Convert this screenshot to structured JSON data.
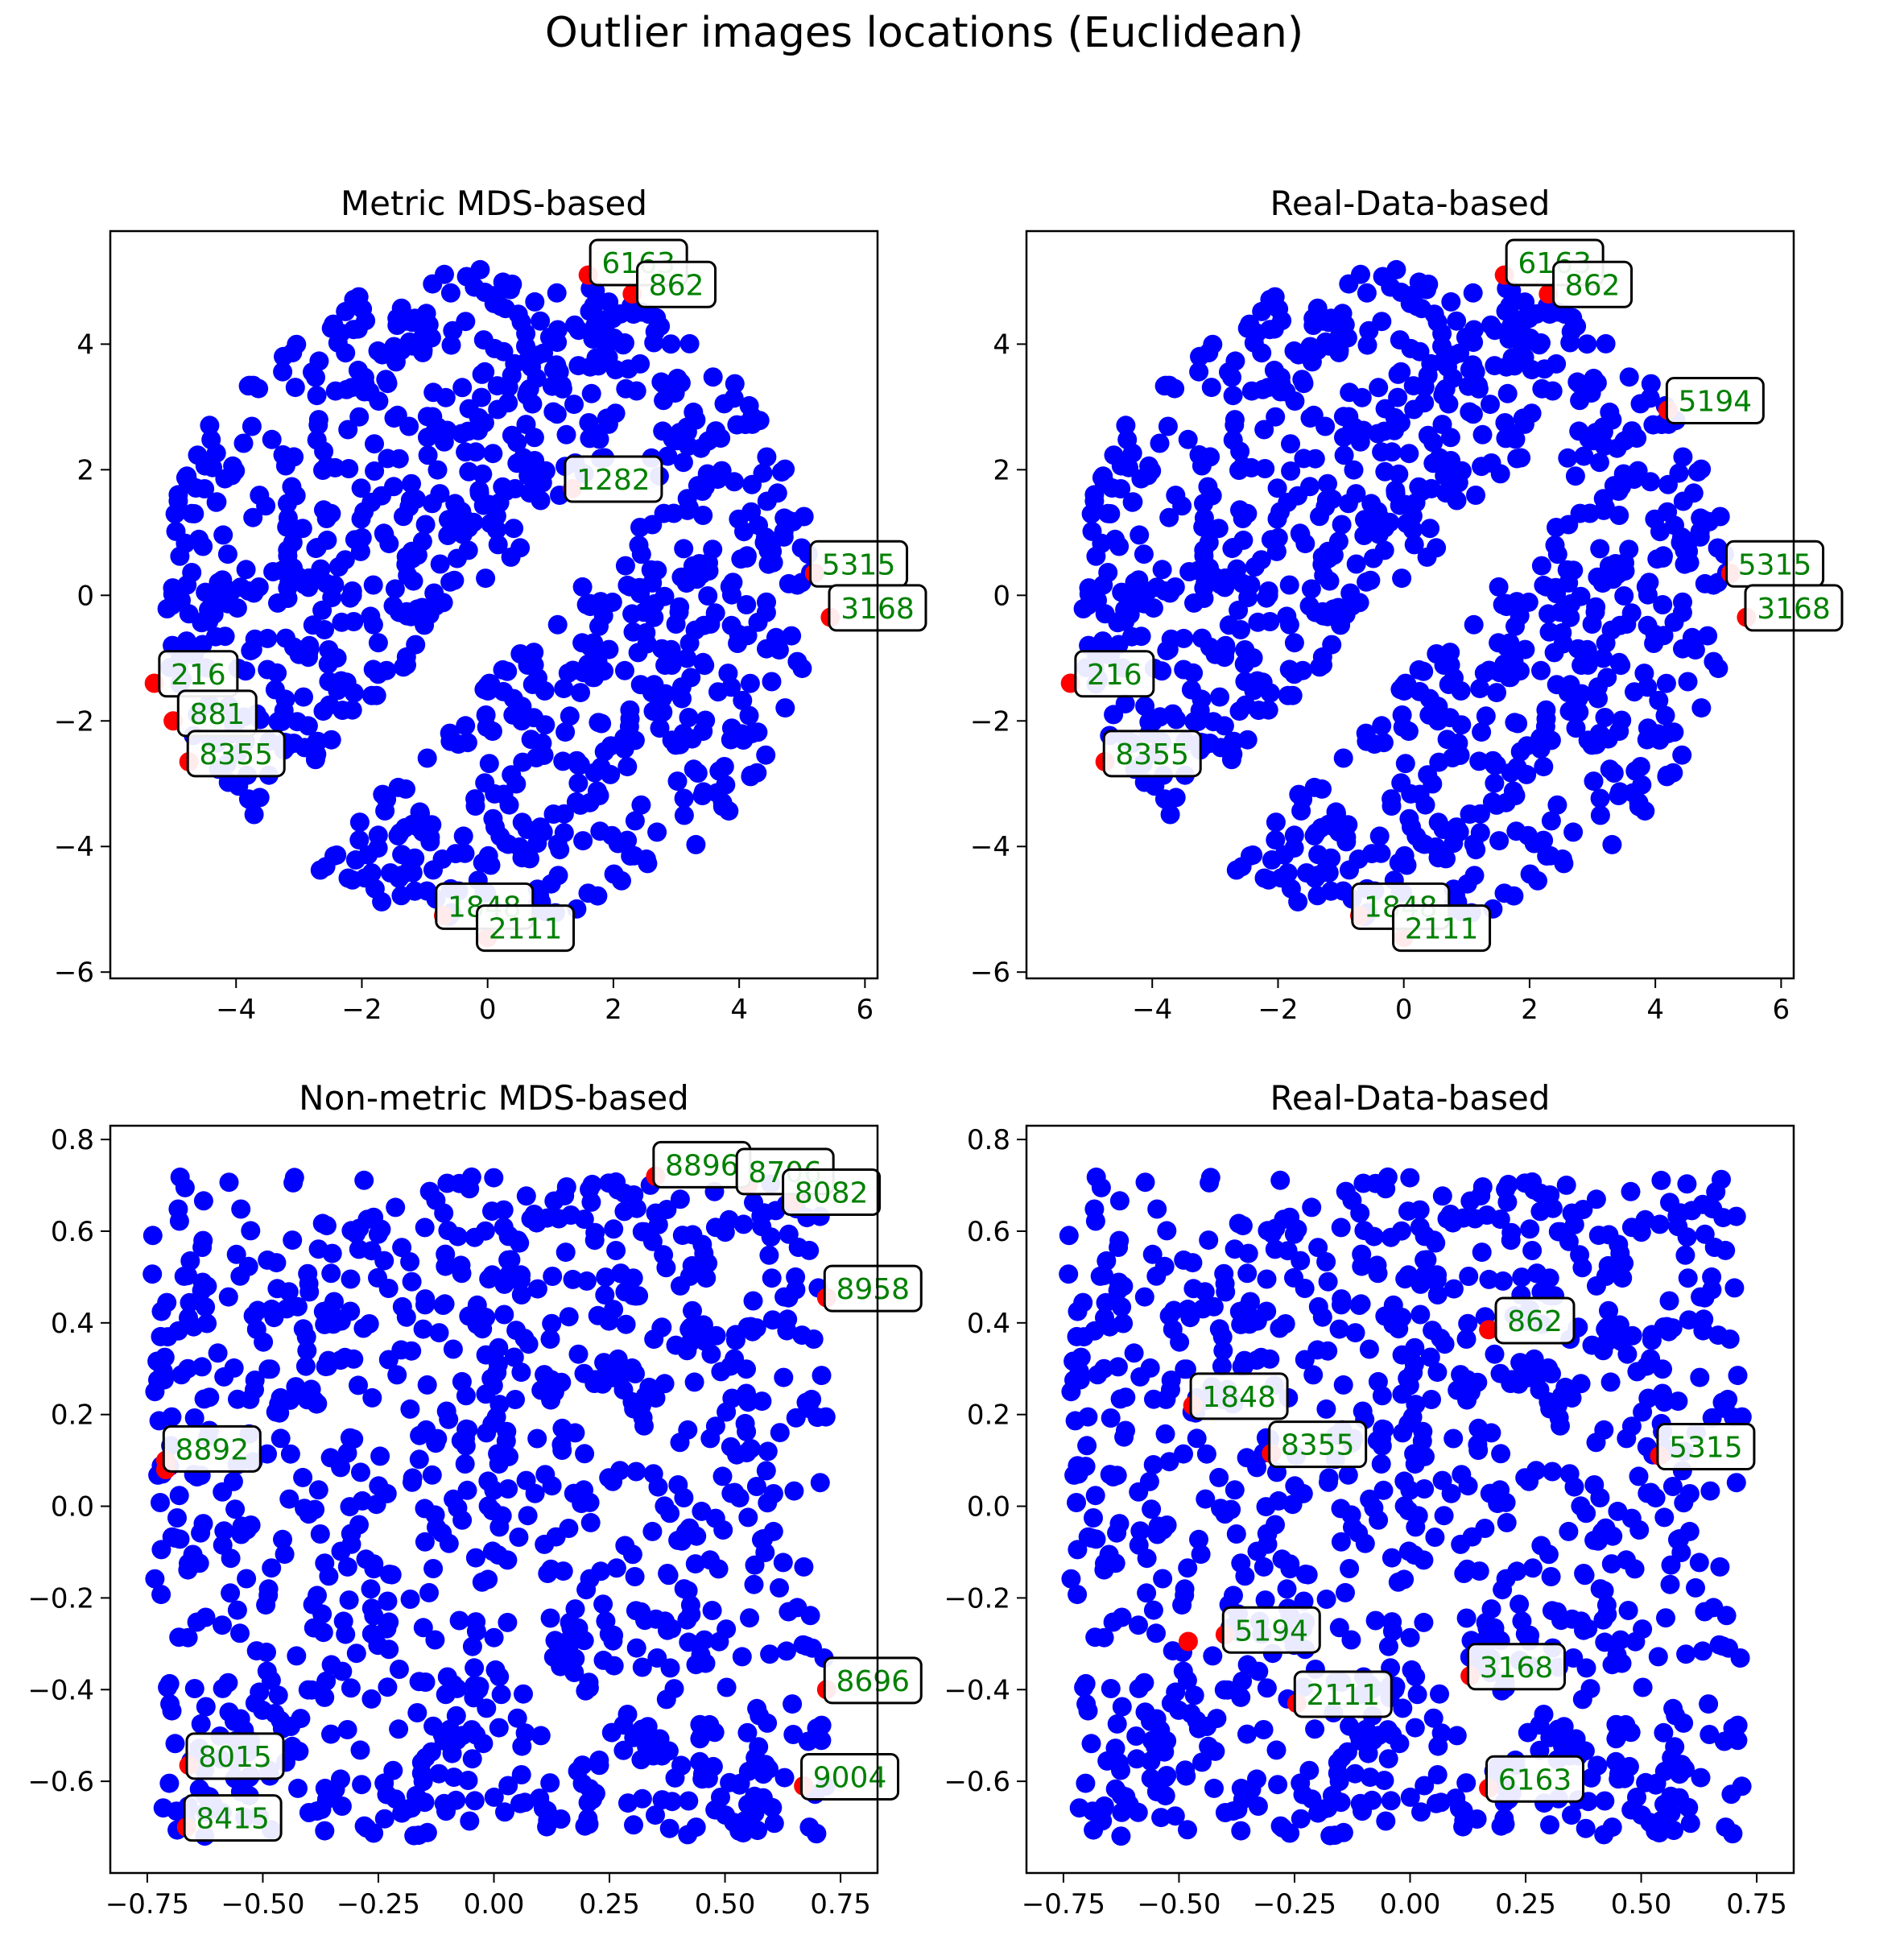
{
  "figure": {
    "suptitle": "Outlier images locations (Euclidean)"
  },
  "colors": {
    "inlier": "#0000ff",
    "outlier": "#ff0000",
    "label_text": "#008000"
  },
  "chart_data": [
    {
      "type": "scatter",
      "title": "Metric MDS-based",
      "xlim": [
        -6,
        6.2
      ],
      "ylim": [
        -6.1,
        5.8
      ],
      "xticks": [
        -4,
        -2,
        0,
        2,
        4,
        6
      ],
      "xtick_labels": [
        "−4",
        "−2",
        "0",
        "2",
        "4",
        "6"
      ],
      "yticks": [
        -6,
        -4,
        -2,
        0,
        2,
        4
      ],
      "ytick_labels": [
        "−6",
        "−4",
        "−2",
        "0",
        "2",
        "4"
      ],
      "inlier_shape": "disk-gap",
      "inlier_radius": 5.2,
      "inlier_gap": {
        "a": -0.9,
        "b": 0.55,
        "tilt": 0.3
      },
      "inlier_count": 900,
      "seed": 11,
      "outliers": [
        {
          "x": 1.6,
          "y": 5.1,
          "label": "6163",
          "lx": 2.4,
          "ly": 5.3
        },
        {
          "x": 2.3,
          "y": 4.8,
          "label": "862",
          "lx": 3.0,
          "ly": 4.95
        },
        {
          "x": 1.35,
          "y": 1.7,
          "label": "1282",
          "lx": 2.0,
          "ly": 1.85
        },
        {
          "x": 5.2,
          "y": 0.35,
          "label": "5315",
          "lx": 5.9,
          "ly": 0.5
        },
        {
          "x": 5.45,
          "y": -0.35,
          "label": "3168",
          "lx": 6.2,
          "ly": -0.2
        },
        {
          "x": -5.3,
          "y": -1.4,
          "label": "216",
          "lx": -4.6,
          "ly": -1.25
        },
        {
          "x": -5.0,
          "y": -2.0,
          "label": "881",
          "lx": -4.3,
          "ly": -1.88
        },
        {
          "x": -4.75,
          "y": -2.65,
          "label": "8355",
          "lx": -4.0,
          "ly": -2.52
        },
        {
          "x": -0.7,
          "y": -5.1,
          "label": "1848",
          "lx": -0.05,
          "ly": -4.95
        },
        {
          "x": 0.0,
          "y": -5.45,
          "label": "2111",
          "lx": 0.6,
          "ly": -5.3
        }
      ]
    },
    {
      "type": "scatter",
      "title": "Real-Data-based",
      "xlim": [
        -6,
        6.2
      ],
      "ylim": [
        -6.1,
        5.8
      ],
      "xticks": [
        -4,
        -2,
        0,
        2,
        4,
        6
      ],
      "xtick_labels": [
        "−4",
        "−2",
        "0",
        "2",
        "4",
        "6"
      ],
      "yticks": [
        -6,
        -4,
        -2,
        0,
        2,
        4
      ],
      "ytick_labels": [
        "−6",
        "−4",
        "−2",
        "0",
        "2",
        "4"
      ],
      "inlier_shape": "disk-gap",
      "inlier_radius": 5.2,
      "inlier_gap": {
        "a": -0.9,
        "b": 0.55,
        "tilt": 0.3
      },
      "inlier_count": 900,
      "seed": 11,
      "outliers": [
        {
          "x": 1.6,
          "y": 5.1,
          "label": "6163",
          "lx": 2.4,
          "ly": 5.3
        },
        {
          "x": 2.3,
          "y": 4.8,
          "label": "862",
          "lx": 3.0,
          "ly": 4.95
        },
        {
          "x": 4.2,
          "y": 2.95,
          "label": "5194",
          "lx": 4.95,
          "ly": 3.1
        },
        {
          "x": 5.2,
          "y": 0.35,
          "label": "5315",
          "lx": 5.9,
          "ly": 0.5
        },
        {
          "x": 5.45,
          "y": -0.35,
          "label": "3168",
          "lx": 6.2,
          "ly": -0.2
        },
        {
          "x": -5.3,
          "y": -1.4,
          "label": "216",
          "lx": -4.6,
          "ly": -1.25
        },
        {
          "x": -4.75,
          "y": -2.65,
          "label": "8355",
          "lx": -4.0,
          "ly": -2.52
        },
        {
          "x": -0.7,
          "y": -5.1,
          "label": "1848",
          "lx": -0.05,
          "ly": -4.95
        },
        {
          "x": 0.0,
          "y": -5.45,
          "label": "2111",
          "lx": 0.6,
          "ly": -5.3
        }
      ]
    },
    {
      "type": "scatter",
      "title": "Non-metric MDS-based",
      "xlim": [
        -0.83,
        0.83
      ],
      "ylim": [
        -0.8,
        0.83
      ],
      "xticks": [
        -0.75,
        -0.5,
        -0.25,
        0.0,
        0.25,
        0.5,
        0.75
      ],
      "xtick_labels": [
        "−0.75",
        "−0.50",
        "−0.25",
        "0.00",
        "0.25",
        "0.50",
        "0.75"
      ],
      "yticks": [
        -0.6,
        -0.4,
        -0.2,
        0.0,
        0.2,
        0.4,
        0.6,
        0.8
      ],
      "ytick_labels": [
        "−0.6",
        "−0.4",
        "−0.2",
        "0.0",
        "0.2",
        "0.4",
        "0.6",
        "0.8"
      ],
      "inlier_shape": "box",
      "inlier_xrange": [
        -0.74,
        0.72
      ],
      "inlier_yrange": [
        -0.72,
        0.72
      ],
      "inlier_count": 950,
      "seed": 23,
      "outliers": [
        {
          "x": 0.35,
          "y": 0.72,
          "label": "8896",
          "lx": 0.45,
          "ly": 0.745
        },
        {
          "x": 0.55,
          "y": 0.7,
          "label": "8706",
          "lx": 0.63,
          "ly": 0.73
        },
        {
          "x": 0.65,
          "y": 0.665,
          "label": "8082",
          "lx": 0.73,
          "ly": 0.685
        },
        {
          "x": 0.72,
          "y": 0.455,
          "label": "8958",
          "lx": 0.82,
          "ly": 0.475
        },
        {
          "x": -0.71,
          "y": 0.1,
          "label": "8892",
          "lx": -0.61,
          "ly": 0.125
        },
        {
          "x": -0.71,
          "y": 0.08,
          "label": "",
          "lx": 0,
          "ly": 0
        },
        {
          "x": 0.72,
          "y": -0.4,
          "label": "8696",
          "lx": 0.82,
          "ly": -0.38
        },
        {
          "x": -0.66,
          "y": -0.565,
          "label": "8015",
          "lx": -0.56,
          "ly": -0.545
        },
        {
          "x": 0.67,
          "y": -0.61,
          "label": "9004",
          "lx": 0.77,
          "ly": -0.59
        },
        {
          "x": -0.665,
          "y": -0.7,
          "label": "8415",
          "lx": -0.565,
          "ly": -0.68
        }
      ]
    },
    {
      "type": "scatter",
      "title": "Real-Data-based",
      "xlim": [
        -0.83,
        0.83
      ],
      "ylim": [
        -0.8,
        0.83
      ],
      "xticks": [
        -0.75,
        -0.5,
        -0.25,
        0.0,
        0.25,
        0.5,
        0.75
      ],
      "xtick_labels": [
        "−0.75",
        "−0.50",
        "−0.25",
        "0.00",
        "0.25",
        "0.50",
        "0.75"
      ],
      "yticks": [
        -0.6,
        -0.4,
        -0.2,
        0.0,
        0.2,
        0.4,
        0.6,
        0.8
      ],
      "ytick_labels": [
        "−0.6",
        "−0.4",
        "−0.2",
        "0.0",
        "0.2",
        "0.4",
        "0.6",
        "0.8"
      ],
      "inlier_shape": "box",
      "inlier_xrange": [
        -0.74,
        0.72
      ],
      "inlier_yrange": [
        -0.72,
        0.72
      ],
      "inlier_count": 950,
      "seed": 23,
      "outliers": [
        {
          "x": 0.17,
          "y": 0.385,
          "label": "862",
          "lx": 0.27,
          "ly": 0.405
        },
        {
          "x": -0.47,
          "y": 0.22,
          "label": "1848",
          "lx": -0.37,
          "ly": 0.24
        },
        {
          "x": -0.3,
          "y": 0.115,
          "label": "8355",
          "lx": -0.2,
          "ly": 0.135
        },
        {
          "x": 0.54,
          "y": 0.11,
          "label": "5315",
          "lx": 0.64,
          "ly": 0.13
        },
        {
          "x": -0.48,
          "y": -0.295,
          "label": "",
          "lx": 0,
          "ly": 0
        },
        {
          "x": -0.4,
          "y": -0.28,
          "label": "5194",
          "lx": -0.3,
          "ly": -0.27
        },
        {
          "x": 0.13,
          "y": -0.37,
          "label": "3168",
          "lx": 0.23,
          "ly": -0.35
        },
        {
          "x": -0.245,
          "y": -0.43,
          "label": "2111",
          "lx": -0.145,
          "ly": -0.41
        },
        {
          "x": 0.17,
          "y": -0.615,
          "label": "6163",
          "lx": 0.27,
          "ly": -0.595
        }
      ]
    }
  ]
}
